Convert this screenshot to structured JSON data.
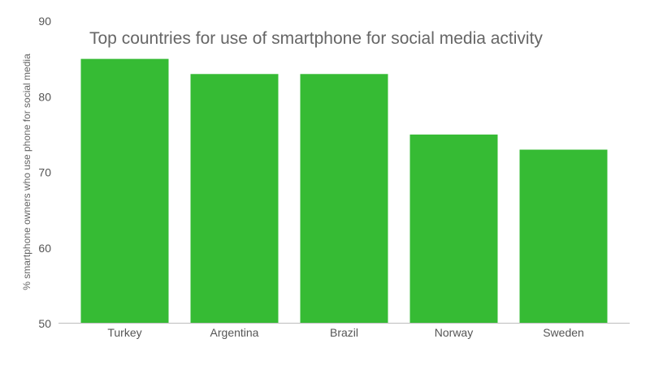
{
  "chart_data": {
    "type": "bar",
    "title": "Top countries for use of smartphone for social media activity",
    "xlabel": "",
    "ylabel": "% smartphone owners who use phone for social media",
    "categories": [
      "Turkey",
      "Argentina",
      "Brazil",
      "Norway",
      "Sweden"
    ],
    "values": [
      85,
      83,
      83,
      75,
      73
    ],
    "ylim": [
      50,
      90
    ],
    "yticks": [
      50,
      60,
      70,
      80,
      90
    ],
    "grid": false,
    "legend": "none",
    "colors": {
      "bar": "#36bb34",
      "axis_line": "#bdbdbd",
      "tick_label": "#555555",
      "title": "#666666",
      "ylabel": "#666666"
    }
  }
}
